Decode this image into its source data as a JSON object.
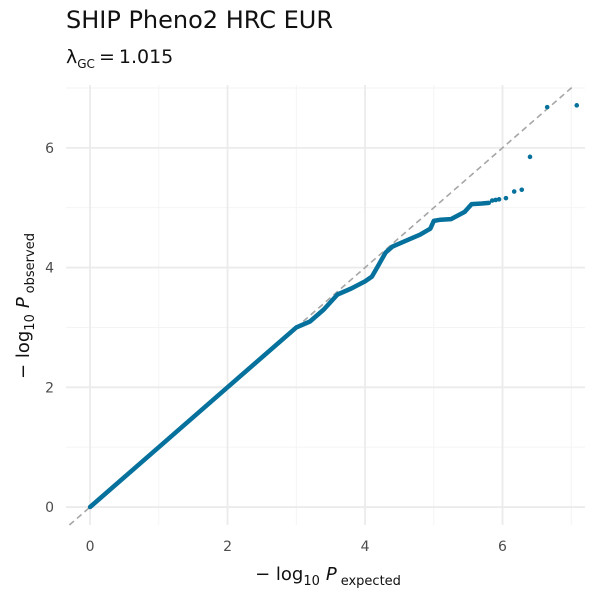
{
  "title": "SHIP Pheno2 HRC EUR",
  "subtitle": {
    "lambda_symbol": "λ",
    "lambda_subscript": "GC",
    "equals": "=",
    "lambda_value": "1.015"
  },
  "axes": {
    "x": {
      "prefix": "− log",
      "log_base": "10",
      "var": "P",
      "subscript": "expected"
    },
    "y": {
      "prefix": "− log",
      "log_base": "10",
      "var": "P",
      "subscript": "observed"
    }
  },
  "colors": {
    "points": "#05719c",
    "reference_line": "#a6a6a6",
    "grid": "#ebebeb",
    "grid_minor": "#f3f3f3"
  },
  "chart_data": {
    "type": "scatter",
    "xlim": [
      -0.35,
      7.2
    ],
    "ylim": [
      -0.3,
      7.05
    ],
    "x_ticks": [
      0,
      2,
      4,
      6
    ],
    "y_ticks": [
      0,
      2,
      4,
      6
    ],
    "x_tick_labels": [
      "0",
      "2",
      "4",
      "6"
    ],
    "y_tick_labels": [
      "0",
      "2",
      "4",
      "6"
    ],
    "grid": true,
    "reference_line": "y = x",
    "curve": [
      [
        0,
        0
      ],
      [
        1,
        1
      ],
      [
        2,
        2
      ],
      [
        3,
        3
      ],
      [
        3.2,
        3.1
      ],
      [
        3.4,
        3.3
      ],
      [
        3.6,
        3.55
      ],
      [
        3.8,
        3.65
      ],
      [
        4.0,
        3.77
      ],
      [
        4.1,
        3.85
      ],
      [
        4.2,
        4.05
      ],
      [
        4.3,
        4.25
      ],
      [
        4.4,
        4.35
      ],
      [
        4.6,
        4.45
      ],
      [
        4.8,
        4.55
      ],
      [
        4.95,
        4.65
      ],
      [
        5.0,
        4.78
      ],
      [
        5.1,
        4.8
      ],
      [
        5.25,
        4.81
      ],
      [
        5.45,
        4.93
      ],
      [
        5.55,
        5.06
      ],
      [
        5.7,
        5.07
      ],
      [
        5.8,
        5.08
      ]
    ],
    "points": [
      [
        5.85,
        5.12
      ],
      [
        5.9,
        5.13
      ],
      [
        5.95,
        5.14
      ],
      [
        6.05,
        5.16
      ],
      [
        6.17,
        5.27
      ],
      [
        6.28,
        5.3
      ],
      [
        6.4,
        5.85
      ],
      [
        6.65,
        6.68
      ],
      [
        7.08,
        6.71
      ]
    ]
  }
}
